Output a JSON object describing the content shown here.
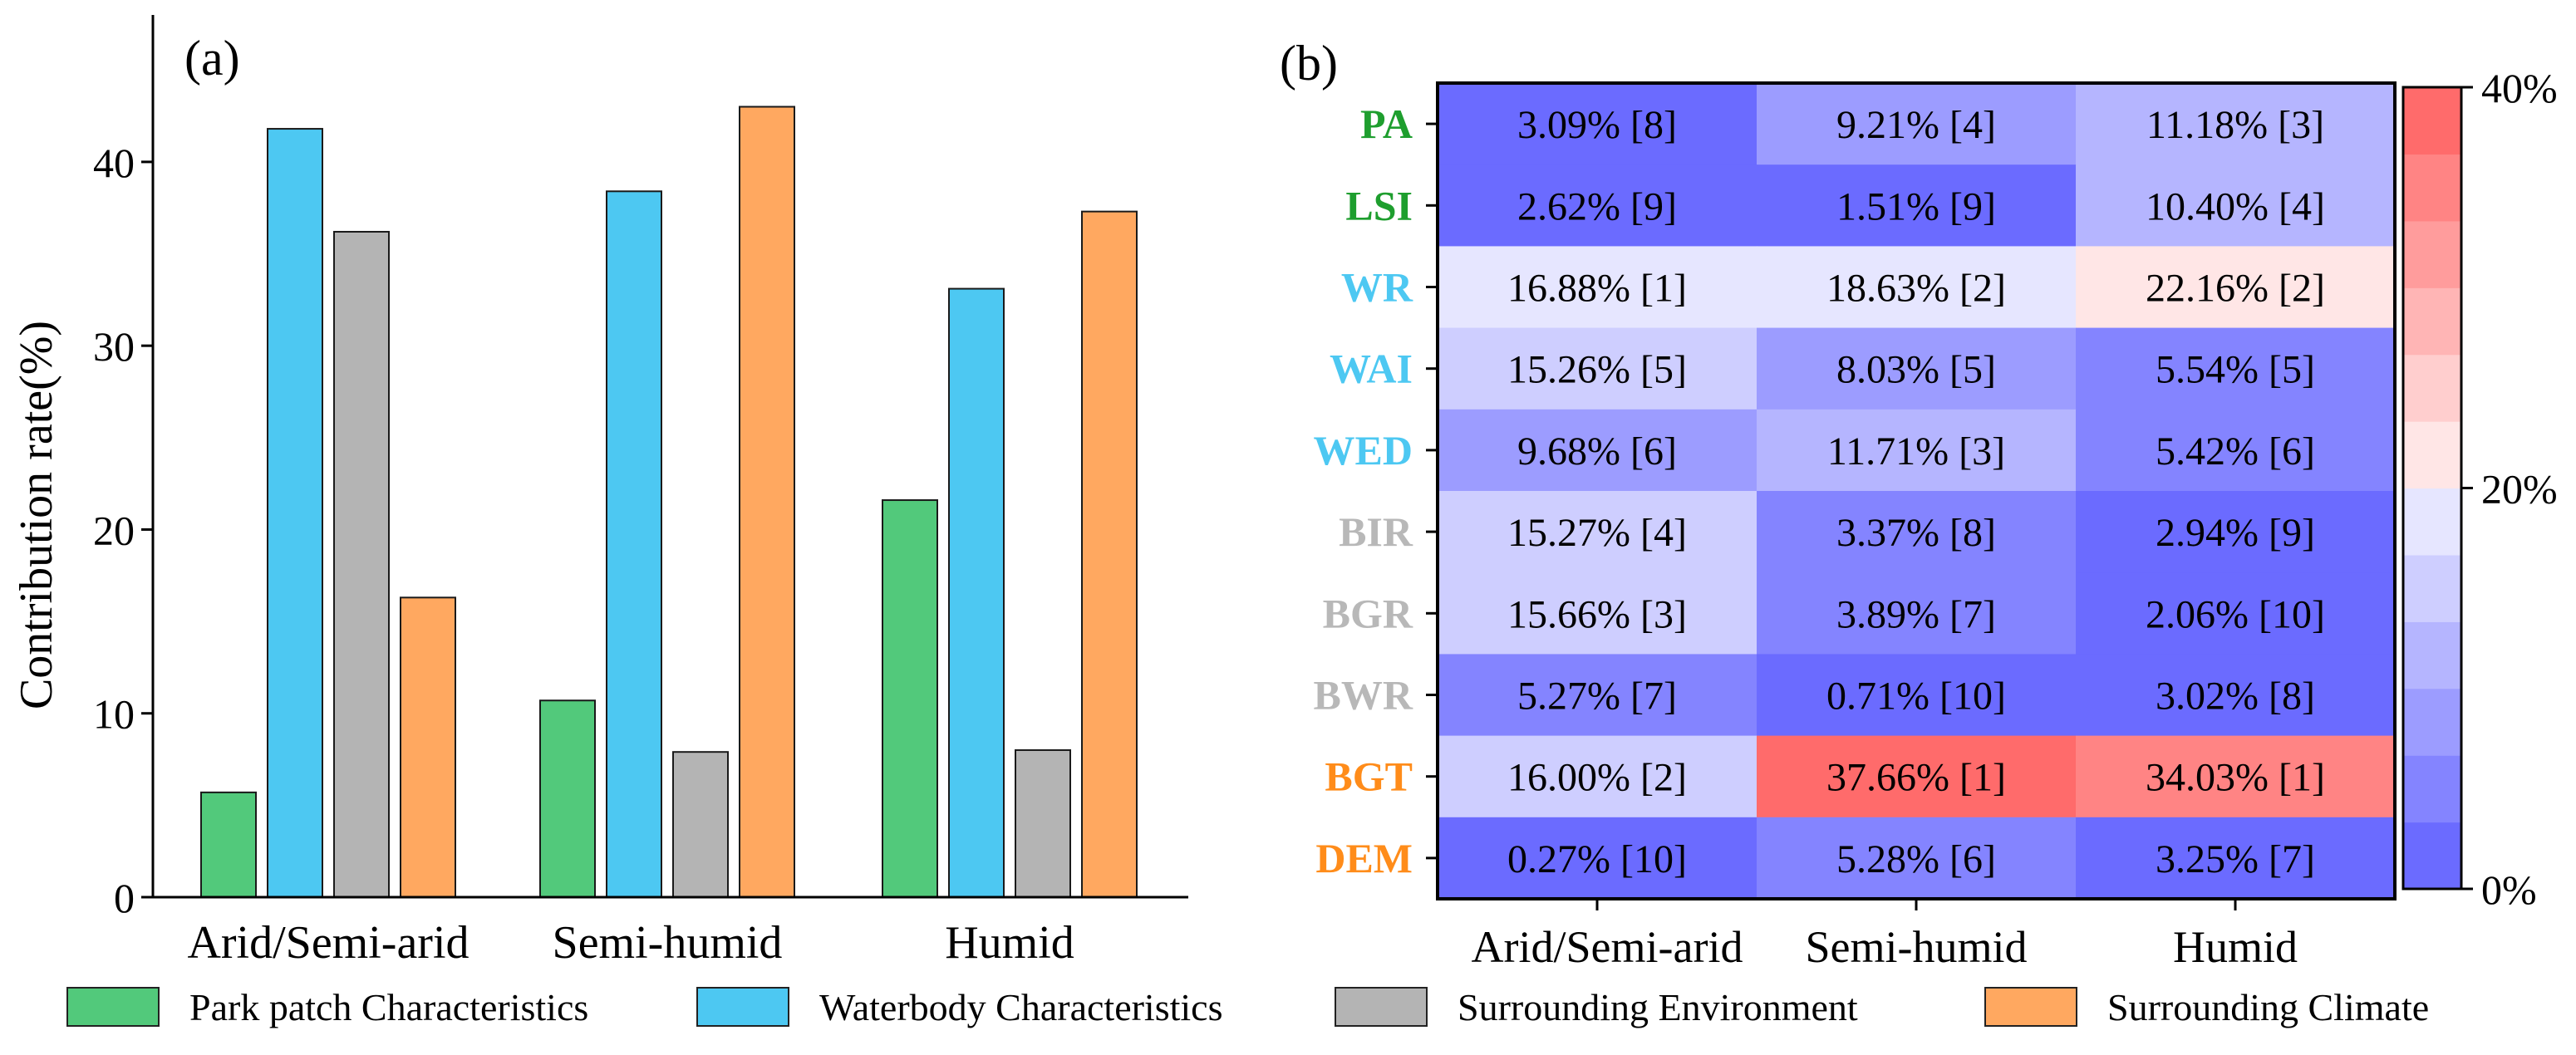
{
  "chart_data": [
    {
      "type": "bar",
      "panel_label": "(a)",
      "ylabel": "Contribution rate(%)",
      "ylim": [
        0,
        47
      ],
      "yticks": [
        "0",
        "10",
        "20",
        "30",
        "40"
      ],
      "categories": [
        "Arid/Semi-arid",
        "Semi-humid",
        "Humid"
      ],
      "series": [
        {
          "name": "Park patch Characteristics",
          "color": "#52C97B",
          "values": [
            5.7,
            10.7,
            21.6
          ]
        },
        {
          "name": "Waterbody Characteristics",
          "color": "#4DC8F2",
          "values": [
            41.8,
            38.4,
            33.1
          ]
        },
        {
          "name": "Surrounding Environment",
          "color": "#B4B4B4",
          "values": [
            36.2,
            7.9,
            8.0
          ]
        },
        {
          "name": "Surrounding Climate",
          "color": "#FFA860",
          "values": [
            16.3,
            43.0,
            37.3
          ]
        }
      ]
    },
    {
      "type": "heatmap",
      "panel_label": "(b)",
      "columns": [
        "Arid/Semi-arid",
        "Semi-humid",
        "Humid"
      ],
      "rows": [
        {
          "label": "PA",
          "color": "#1E9E2E",
          "values": [
            3.09,
            9.21,
            11.18
          ],
          "cells": [
            "3.09% [8]",
            "9.21% [4]",
            "11.18% [3]"
          ]
        },
        {
          "label": "LSI",
          "color": "#1E9E2E",
          "values": [
            2.62,
            1.51,
            10.4
          ],
          "cells": [
            "2.62% [9]",
            "1.51% [9]",
            "10.40% [4]"
          ]
        },
        {
          "label": "WR",
          "color": "#4DC8F2",
          "values": [
            16.88,
            18.63,
            22.16
          ],
          "cells": [
            "16.88% [1]",
            "18.63% [2]",
            "22.16% [2]"
          ]
        },
        {
          "label": "WAI",
          "color": "#4DC8F2",
          "values": [
            15.26,
            8.03,
            5.54
          ],
          "cells": [
            "15.26% [5]",
            "8.03% [5]",
            "5.54% [5]"
          ]
        },
        {
          "label": "WED",
          "color": "#4DC8F2",
          "values": [
            9.68,
            11.71,
            5.42
          ],
          "cells": [
            "9.68% [6]",
            "11.71% [3]",
            "5.42% [6]"
          ]
        },
        {
          "label": "BIR",
          "color": "#B8B8B8",
          "values": [
            15.27,
            3.37,
            2.94
          ],
          "cells": [
            "15.27% [4]",
            "3.37% [8]",
            "2.94% [9]"
          ]
        },
        {
          "label": "BGR",
          "color": "#B8B8B8",
          "values": [
            15.66,
            3.89,
            2.06
          ],
          "cells": [
            "15.66% [3]",
            "3.89% [7]",
            "2.06% [10]"
          ]
        },
        {
          "label": "BWR",
          "color": "#B8B8B8",
          "values": [
            5.27,
            0.71,
            3.02
          ],
          "cells": [
            "5.27% [7]",
            "0.71% [10]",
            "3.02% [8]"
          ]
        },
        {
          "label": "BGT",
          "color": "#FF8C1A",
          "values": [
            16.0,
            37.66,
            34.03
          ],
          "cells": [
            "16.00% [2]",
            "37.66% [1]",
            "34.03% [1]"
          ]
        },
        {
          "label": "DEM",
          "color": "#FF8C1A",
          "values": [
            0.27,
            5.28,
            3.25
          ],
          "cells": [
            "0.27% [10]",
            "5.28% [6]",
            "3.25% [7]"
          ]
        }
      ],
      "colorbar": {
        "min": 0,
        "max": 40,
        "steps": 12,
        "ticks": [
          "0%",
          "20%",
          "40%"
        ],
        "low_color": "#6B6BFF",
        "mid_color": "#FFFFFF",
        "high_color": "#FF6B6B"
      }
    }
  ],
  "legend": [
    {
      "label": "Park patch Characteristics",
      "color": "#52C97B"
    },
    {
      "label": "Waterbody Characteristics",
      "color": "#4DC8F2"
    },
    {
      "label": "Surrounding Environment",
      "color": "#B4B4B4"
    },
    {
      "label": "Surrounding Climate",
      "color": "#FFA860"
    }
  ]
}
